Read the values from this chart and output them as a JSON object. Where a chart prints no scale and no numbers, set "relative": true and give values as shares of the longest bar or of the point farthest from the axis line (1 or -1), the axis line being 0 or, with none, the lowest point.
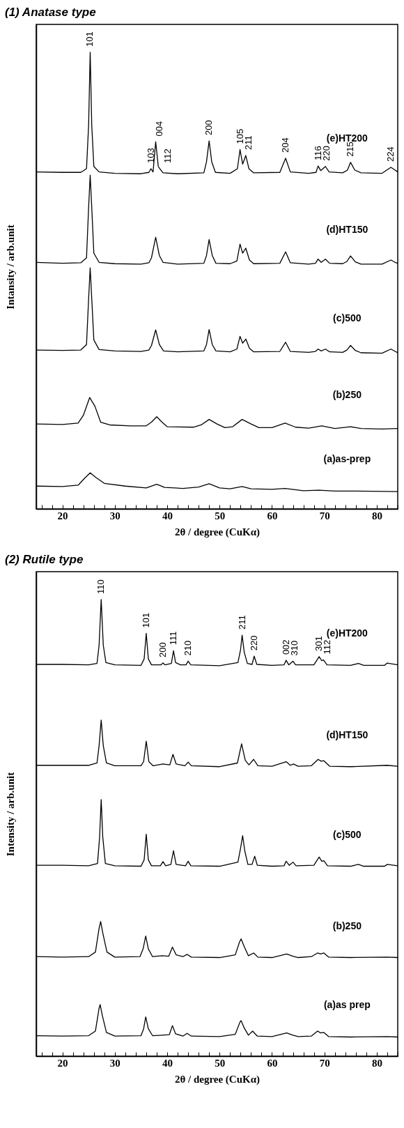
{
  "chart_data": [
    {
      "type": "line",
      "title": "(1) Anatase type",
      "xlabel": "2θ / degree (CuKα)",
      "ylabel": "Intansity / arb.unit",
      "relative": true,
      "xlim": [
        15,
        84
      ],
      "xticks": [
        {
          "value": 16,
          "label": null
        },
        {
          "value": 18,
          "label": null
        },
        20,
        {
          "value": 22,
          "label": null
        },
        {
          "value": 24,
          "label": null
        },
        {
          "value": 26,
          "label": null
        },
        {
          "value": 28,
          "label": null
        },
        30,
        {
          "value": 32,
          "label": null
        },
        {
          "value": 34,
          "label": null
        },
        {
          "value": 36,
          "label": null
        },
        {
          "value": 38,
          "label": null
        },
        40,
        {
          "value": 42,
          "label": null
        },
        {
          "value": 44,
          "label": null
        },
        {
          "value": 46,
          "label": null
        },
        {
          "value": 48,
          "label": null
        },
        50,
        {
          "value": 52,
          "label": null
        },
        {
          "value": 54,
          "label": null
        },
        {
          "value": 56,
          "label": null
        },
        {
          "value": 58,
          "label": null
        },
        60,
        {
          "value": 62,
          "label": null
        },
        {
          "value": 64,
          "label": null
        },
        {
          "value": 66,
          "label": null
        },
        {
          "value": 68,
          "label": null
        },
        70,
        {
          "value": 72,
          "label": null
        },
        {
          "value": 74,
          "label": null
        },
        {
          "value": 76,
          "label": null
        },
        {
          "value": 78,
          "label": null
        },
        80,
        {
          "value": 82,
          "label": null
        },
        {
          "value": 84,
          "label": null
        }
      ],
      "series": [
        {
          "name": "(e)HT200",
          "color": "#000000",
          "x": [
            15,
            20,
            23.5,
            24.6,
            25.0,
            25.3,
            25.6,
            26.0,
            27,
            30,
            35,
            36.5,
            36.9,
            37.3,
            37.8,
            38.3,
            38.6,
            39.2,
            42,
            47,
            47.5,
            48.0,
            48.5,
            49.2,
            52,
            53.4,
            53.9,
            54.4,
            55.0,
            55.6,
            56.5,
            61.5,
            62.6,
            63.5,
            67,
            68.4,
            68.8,
            69.3,
            70.2,
            70.9,
            73.5,
            74.4,
            75.0,
            75.8,
            77,
            81,
            82.7,
            83.5,
            84
          ],
          "values": [
            0.738,
            0.737,
            0.737,
            0.745,
            0.84,
            1.0,
            0.84,
            0.75,
            0.738,
            0.735,
            0.734,
            0.737,
            0.745,
            0.738,
            0.804,
            0.75,
            0.745,
            0.736,
            0.734,
            0.736,
            0.76,
            0.806,
            0.76,
            0.737,
            0.735,
            0.745,
            0.787,
            0.755,
            0.774,
            0.745,
            0.736,
            0.737,
            0.768,
            0.738,
            0.735,
            0.737,
            0.751,
            0.741,
            0.75,
            0.738,
            0.736,
            0.742,
            0.759,
            0.742,
            0.736,
            0.735,
            0.748,
            0.742,
            0.738
          ]
        },
        {
          "name": "(d)HT150",
          "color": "#000000",
          "x": [
            15,
            20,
            23.5,
            24.6,
            25.0,
            25.3,
            25.6,
            26.0,
            27,
            30,
            35,
            36.5,
            37.0,
            37.8,
            38.5,
            39.2,
            42,
            47,
            47.5,
            48.0,
            48.6,
            49.3,
            52,
            53.3,
            53.9,
            54.4,
            55.0,
            55.7,
            56.5,
            61.5,
            62.6,
            63.5,
            67,
            68.3,
            68.8,
            69.4,
            70.2,
            71,
            73.5,
            74.3,
            75.0,
            75.9,
            77,
            81,
            82.7,
            83.5,
            84
          ],
          "values": [
            0.54,
            0.538,
            0.539,
            0.55,
            0.66,
            0.731,
            0.66,
            0.56,
            0.54,
            0.537,
            0.536,
            0.539,
            0.55,
            0.595,
            0.555,
            0.54,
            0.536,
            0.538,
            0.555,
            0.59,
            0.555,
            0.538,
            0.537,
            0.543,
            0.58,
            0.56,
            0.571,
            0.545,
            0.537,
            0.538,
            0.563,
            0.539,
            0.536,
            0.538,
            0.547,
            0.54,
            0.547,
            0.538,
            0.537,
            0.542,
            0.554,
            0.541,
            0.536,
            0.536,
            0.545,
            0.54,
            0.538
          ]
        },
        {
          "name": "(c)500",
          "color": "#000000",
          "x": [
            15,
            20,
            23.5,
            24.6,
            25.0,
            25.3,
            25.6,
            26.0,
            27,
            30,
            35,
            36.5,
            37.0,
            37.8,
            38.5,
            39.3,
            42,
            47,
            47.5,
            48.0,
            48.6,
            49.3,
            52,
            53.3,
            53.9,
            54.4,
            55.0,
            55.7,
            56.5,
            61.5,
            62.6,
            63.5,
            67,
            68.3,
            68.8,
            69.4,
            70.2,
            71,
            73.5,
            74.3,
            75.0,
            75.9,
            77,
            81,
            82.7,
            83.5,
            84
          ],
          "values": [
            0.348,
            0.347,
            0.348,
            0.36,
            0.46,
            0.528,
            0.46,
            0.37,
            0.349,
            0.346,
            0.345,
            0.348,
            0.358,
            0.392,
            0.36,
            0.346,
            0.344,
            0.346,
            0.36,
            0.393,
            0.36,
            0.346,
            0.344,
            0.35,
            0.378,
            0.363,
            0.372,
            0.352,
            0.344,
            0.345,
            0.365,
            0.345,
            0.343,
            0.345,
            0.35,
            0.346,
            0.35,
            0.344,
            0.343,
            0.348,
            0.358,
            0.347,
            0.342,
            0.341,
            0.35,
            0.345,
            0.342
          ]
        },
        {
          "name": "(b)250",
          "color": "#000000",
          "x": [
            15,
            20,
            23,
            24,
            25.2,
            26.2,
            27.3,
            29,
            33,
            36,
            37,
            38,
            39,
            40,
            45,
            46.5,
            48,
            49.5,
            51,
            52.5,
            54.3,
            56,
            57.5,
            60,
            62.5,
            64.5,
            67,
            69.5,
            72,
            75,
            77,
            81,
            84
          ],
          "values": [
            0.186,
            0.185,
            0.188,
            0.205,
            0.244,
            0.225,
            0.19,
            0.184,
            0.182,
            0.182,
            0.19,
            0.202,
            0.19,
            0.18,
            0.179,
            0.184,
            0.196,
            0.186,
            0.178,
            0.18,
            0.196,
            0.186,
            0.178,
            0.178,
            0.188,
            0.179,
            0.177,
            0.182,
            0.176,
            0.18,
            0.176,
            0.175,
            0.176
          ]
        },
        {
          "name": "(a)as-prep",
          "color": "#000000",
          "x": [
            15,
            20,
            23,
            24.3,
            25.3,
            26.5,
            28,
            32,
            36,
            38,
            39.5,
            43,
            46,
            48,
            50,
            52,
            54.3,
            56,
            60,
            62.5,
            66,
            69,
            72,
            76,
            84
          ],
          "values": [
            0.05,
            0.049,
            0.052,
            0.068,
            0.079,
            0.068,
            0.056,
            0.05,
            0.046,
            0.054,
            0.047,
            0.045,
            0.048,
            0.055,
            0.046,
            0.044,
            0.049,
            0.044,
            0.043,
            0.045,
            0.04,
            0.041,
            0.039,
            0.039,
            0.038
          ]
        }
      ],
      "annotations": [
        {
          "text": "101",
          "x": 25.3,
          "y": 1.0
        },
        {
          "text": "103",
          "x": 36.9,
          "y": 0.745
        },
        {
          "text": "004",
          "x": 37.8,
          "y": 0.804
        },
        {
          "text": "112",
          "x": 38.6,
          "y": 0.745
        },
        {
          "text": "200",
          "x": 48.0,
          "y": 0.806
        },
        {
          "text": "105",
          "x": 53.9,
          "y": 0.787
        },
        {
          "text": "211",
          "x": 55.0,
          "y": 0.774
        },
        {
          "text": "204",
          "x": 62.6,
          "y": 0.768
        },
        {
          "text": "116",
          "x": 68.8,
          "y": 0.751
        },
        {
          "text": "220",
          "x": 70.2,
          "y": 0.75
        },
        {
          "text": "215",
          "x": 75.0,
          "y": 0.759
        },
        {
          "text": "224",
          "x": 82.7,
          "y": 0.748
        }
      ]
    },
    {
      "type": "line",
      "title": "(2) Rutile type",
      "xlabel": "2θ / degree (CuKα)",
      "ylabel": "Intensity / arb.unit",
      "relative": true,
      "xlim": [
        15,
        84
      ],
      "xticks": [
        {
          "value": 16,
          "label": null
        },
        {
          "value": 18,
          "label": null
        },
        20,
        {
          "value": 22,
          "label": null
        },
        {
          "value": 24,
          "label": null
        },
        {
          "value": 26,
          "label": null
        },
        {
          "value": 28,
          "label": null
        },
        30,
        {
          "value": 32,
          "label": null
        },
        {
          "value": 34,
          "label": null
        },
        {
          "value": 36,
          "label": null
        },
        {
          "value": 38,
          "label": null
        },
        40,
        {
          "value": 42,
          "label": null
        },
        {
          "value": 44,
          "label": null
        },
        {
          "value": 46,
          "label": null
        },
        {
          "value": 48,
          "label": null
        },
        50,
        {
          "value": 52,
          "label": null
        },
        {
          "value": 54,
          "label": null
        },
        {
          "value": 56,
          "label": null
        },
        {
          "value": 58,
          "label": null
        },
        60,
        {
          "value": 62,
          "label": null
        },
        {
          "value": 64,
          "label": null
        },
        {
          "value": 66,
          "label": null
        },
        {
          "value": 68,
          "label": null
        },
        70,
        {
          "value": 72,
          "label": null
        },
        {
          "value": 74,
          "label": null
        },
        {
          "value": 76,
          "label": null
        },
        {
          "value": 78,
          "label": null
        },
        80,
        {
          "value": 82,
          "label": null
        },
        {
          "value": 84,
          "label": null
        }
      ],
      "series": [
        {
          "name": "(e)HT200",
          "color": "#000000",
          "x": [
            15,
            20,
            25,
            26.6,
            27.0,
            27.4,
            27.8,
            28.3,
            30,
            35,
            35.6,
            36.0,
            36.4,
            37,
            38.8,
            39.2,
            39.6,
            40.8,
            41.2,
            41.6,
            42.5,
            43.6,
            44.0,
            44.5,
            50,
            53.5,
            54.0,
            54.3,
            54.7,
            55.3,
            56.2,
            56.6,
            57.1,
            60,
            62.3,
            62.7,
            63.2,
            64.0,
            64.5,
            68,
            69.0,
            69.5,
            69.8,
            70.5,
            75,
            76.5,
            77.5,
            81.5,
            82,
            84
          ],
          "values": [
            0.858,
            0.858,
            0.857,
            0.86,
            0.9,
            1.0,
            0.9,
            0.862,
            0.857,
            0.856,
            0.87,
            0.926,
            0.87,
            0.857,
            0.857,
            0.861,
            0.857,
            0.86,
            0.888,
            0.862,
            0.857,
            0.857,
            0.865,
            0.857,
            0.855,
            0.862,
            0.89,
            0.922,
            0.885,
            0.86,
            0.858,
            0.876,
            0.858,
            0.856,
            0.857,
            0.867,
            0.857,
            0.865,
            0.857,
            0.857,
            0.875,
            0.866,
            0.868,
            0.857,
            0.856,
            0.86,
            0.856,
            0.856,
            0.861,
            0.857
          ]
        },
        {
          "name": "(d)HT150",
          "color": "#000000",
          "x": [
            15,
            20,
            25,
            26.6,
            27.0,
            27.4,
            27.8,
            28.4,
            30,
            35,
            35.5,
            36.0,
            36.5,
            37.3,
            39.2,
            40.5,
            41.1,
            41.7,
            43.4,
            44.0,
            44.6,
            50,
            53.4,
            54.2,
            54.9,
            55.6,
            56.5,
            57.3,
            60,
            62.7,
            63.5,
            64.1,
            65,
            67.5,
            68.8,
            69.4,
            69.9,
            71,
            75,
            82,
            84
          ],
          "values": [
            0.637,
            0.637,
            0.637,
            0.642,
            0.68,
            0.736,
            0.68,
            0.642,
            0.636,
            0.636,
            0.645,
            0.69,
            0.645,
            0.636,
            0.64,
            0.638,
            0.661,
            0.64,
            0.636,
            0.644,
            0.636,
            0.634,
            0.642,
            0.684,
            0.648,
            0.638,
            0.65,
            0.636,
            0.635,
            0.645,
            0.637,
            0.64,
            0.635,
            0.636,
            0.65,
            0.646,
            0.647,
            0.635,
            0.634,
            0.637,
            0.635
          ]
        },
        {
          "name": "(c)500",
          "color": "#000000",
          "x": [
            15,
            20,
            25,
            26.7,
            27.1,
            27.4,
            27.7,
            28.2,
            30,
            35,
            35.6,
            36.0,
            36.4,
            37,
            38.7,
            39.2,
            39.7,
            40.7,
            41.2,
            41.7,
            43.5,
            44.0,
            44.5,
            50,
            53.5,
            54.0,
            54.4,
            54.8,
            55.4,
            56.2,
            56.7,
            57.2,
            60,
            62.3,
            62.7,
            63.3,
            64.0,
            64.6,
            68,
            69.0,
            69.5,
            69.9,
            70.6,
            75,
            76.5,
            77.5,
            81.5,
            82,
            84
          ],
          "values": [
            0.418,
            0.418,
            0.417,
            0.422,
            0.48,
            0.562,
            0.48,
            0.422,
            0.417,
            0.416,
            0.43,
            0.486,
            0.43,
            0.417,
            0.417,
            0.426,
            0.417,
            0.42,
            0.45,
            0.42,
            0.417,
            0.427,
            0.417,
            0.416,
            0.425,
            0.455,
            0.483,
            0.45,
            0.42,
            0.42,
            0.438,
            0.418,
            0.416,
            0.417,
            0.427,
            0.418,
            0.425,
            0.417,
            0.418,
            0.436,
            0.427,
            0.428,
            0.417,
            0.416,
            0.42,
            0.416,
            0.416,
            0.42,
            0.417
          ]
        },
        {
          "name": "(b)250",
          "color": "#000000",
          "x": [
            15,
            20,
            25,
            26.3,
            27.0,
            27.3,
            27.7,
            28.5,
            30,
            34.8,
            35.4,
            35.9,
            36.4,
            37.2,
            39,
            40.3,
            41.0,
            41.7,
            43,
            43.8,
            44.6,
            50,
            53,
            53.8,
            54.1,
            54.7,
            55.5,
            56.5,
            57.3,
            60,
            62.8,
            64,
            65,
            67.5,
            68.7,
            69.3,
            69.9,
            70.8,
            75,
            82,
            84
          ],
          "values": [
            0.218,
            0.217,
            0.218,
            0.228,
            0.28,
            0.295,
            0.27,
            0.228,
            0.217,
            0.218,
            0.235,
            0.263,
            0.235,
            0.218,
            0.22,
            0.219,
            0.239,
            0.222,
            0.218,
            0.223,
            0.217,
            0.216,
            0.222,
            0.25,
            0.257,
            0.24,
            0.22,
            0.226,
            0.217,
            0.216,
            0.224,
            0.219,
            0.216,
            0.218,
            0.226,
            0.224,
            0.226,
            0.217,
            0.216,
            0.217,
            0.216
          ]
        },
        {
          "name": "(a)as prep",
          "color": "#000000",
          "x": [
            15,
            20,
            25,
            26.3,
            27.0,
            27.2,
            27.6,
            28.4,
            30,
            35,
            35.5,
            35.9,
            36.4,
            37.2,
            39,
            40.4,
            41.0,
            41.6,
            43,
            43.8,
            44.6,
            50,
            53,
            53.9,
            54.1,
            54.7,
            55.5,
            56.3,
            57.2,
            60,
            62.8,
            64,
            65,
            67.5,
            68.7,
            69.3,
            69.9,
            70.8,
            75,
            82,
            84
          ],
          "values": [
            0.045,
            0.044,
            0.045,
            0.055,
            0.105,
            0.113,
            0.09,
            0.052,
            0.044,
            0.045,
            0.06,
            0.086,
            0.06,
            0.045,
            0.046,
            0.047,
            0.067,
            0.049,
            0.044,
            0.05,
            0.044,
            0.043,
            0.048,
            0.075,
            0.078,
            0.062,
            0.046,
            0.055,
            0.044,
            0.043,
            0.051,
            0.046,
            0.043,
            0.044,
            0.055,
            0.051,
            0.052,
            0.043,
            0.042,
            0.043,
            0.042
          ]
        }
      ],
      "annotations": [
        {
          "text": "110",
          "x": 27.4,
          "y": 1.0
        },
        {
          "text": "101",
          "x": 36.0,
          "y": 0.926
        },
        {
          "text": "200",
          "x": 39.2,
          "y": 0.861
        },
        {
          "text": "111",
          "x": 41.2,
          "y": 0.888
        },
        {
          "text": "210",
          "x": 44.0,
          "y": 0.865
        },
        {
          "text": "211",
          "x": 54.3,
          "y": 0.922
        },
        {
          "text": "220",
          "x": 56.6,
          "y": 0.876
        },
        {
          "text": "002",
          "x": 62.7,
          "y": 0.867
        },
        {
          "text": "310",
          "x": 64.0,
          "y": 0.865
        },
        {
          "text": "301",
          "x": 69.0,
          "y": 0.875
        },
        {
          "text": "112",
          "x": 69.8,
          "y": 0.868
        }
      ]
    }
  ]
}
